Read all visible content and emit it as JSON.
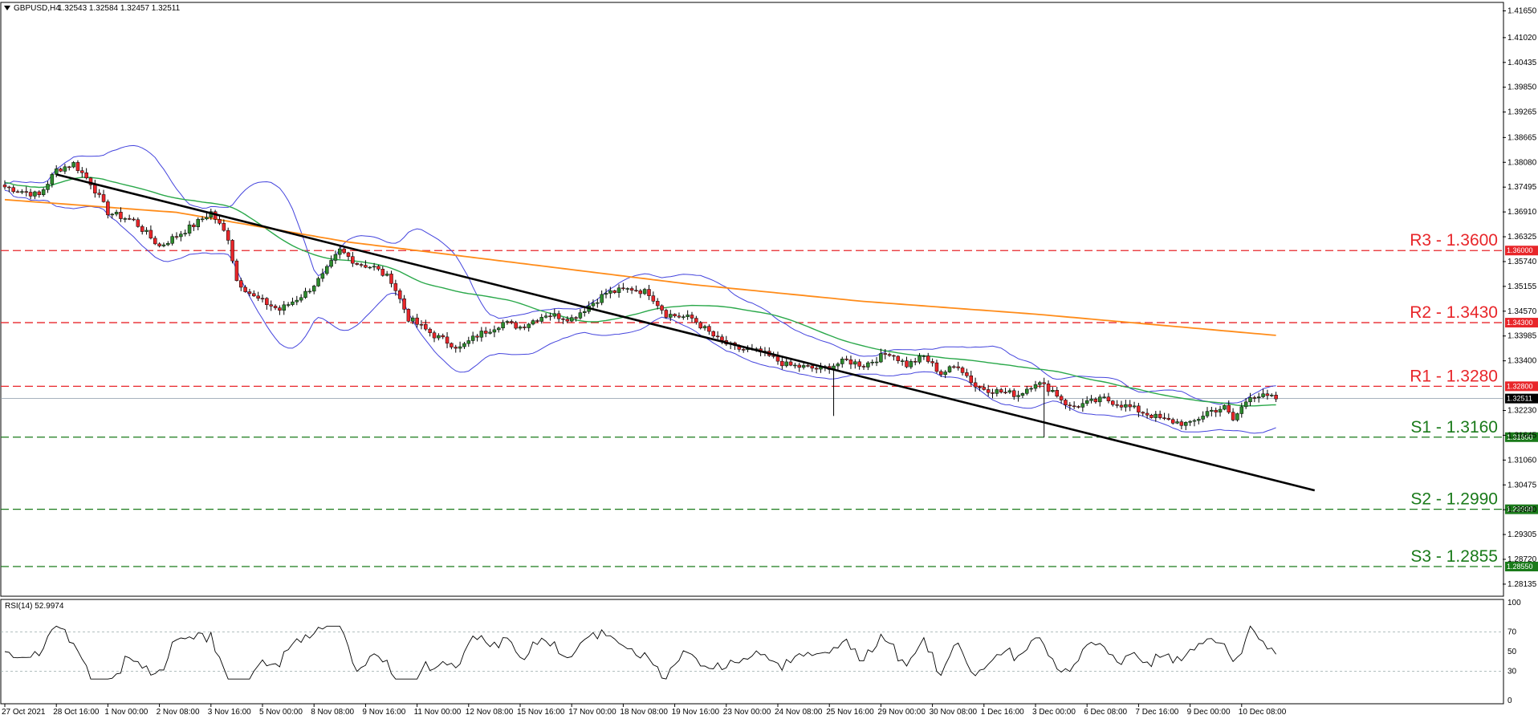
{
  "header": {
    "symbol": "GBPUSD,H4",
    "ohlc": "1.32543 1.32584 1.32457 1.32511"
  },
  "rsi_header": "RSI(14) 52.9974",
  "colors": {
    "bull": "#2e8b2e",
    "bear": "#e8262a",
    "bollinger": "#4444dd",
    "ma_short": "#2aa84a",
    "ma_long": "#ff8c1a",
    "trendline": "#000000",
    "resistance": "#e8262a",
    "support": "#1a7a1a"
  },
  "chart_data": [
    {
      "type": "candlestick",
      "title": "GBPUSD,H4",
      "ylim": [
        1.2785,
        1.4185
      ],
      "y_ticks": [
        "1.41650",
        "1.41020",
        "1.40435",
        "1.39850",
        "1.39265",
        "1.38665",
        "1.38080",
        "1.37495",
        "1.36910",
        "1.36325",
        "1.35740",
        "1.35155",
        "1.34570",
        "1.33985",
        "1.33400",
        "1.32800",
        "1.32511",
        "1.32230",
        "1.31645",
        "1.31060",
        "1.30475",
        "1.29890",
        "1.29305",
        "1.28720",
        "1.28550",
        "1.28135"
      ],
      "x_tick_labels": [
        "27 Oct 2021",
        "28 Oct 16:00",
        "1 Nov 00:00",
        "2 Nov 08:00",
        "3 Nov 16:00",
        "5 Nov 00:00",
        "8 Nov 08:00",
        "9 Nov 16:00",
        "11 Nov 00:00",
        "12 Nov 08:00",
        "15 Nov 16:00",
        "17 Nov 00:00",
        "18 Nov 08:00",
        "19 Nov 16:00",
        "23 Nov 00:00",
        "24 Nov 08:00",
        "25 Nov 16:00",
        "29 Nov 00:00",
        "30 Nov 08:00",
        "1 Dec 16:00",
        "3 Dec 00:00",
        "6 Dec 08:00",
        "7 Dec 16:00",
        "9 Dec 00:00",
        "10 Dec 08:00"
      ],
      "current_price": "1.32511",
      "levels": [
        {
          "name": "R3",
          "label": "R3 - 1.3600",
          "value": 1.36,
          "tag": "1.36000",
          "kind": "resistance"
        },
        {
          "name": "R2",
          "label": "R2 - 1.3430",
          "value": 1.343,
          "tag": "1.34300",
          "kind": "resistance"
        },
        {
          "name": "R1",
          "label": "R1 - 1.3280",
          "value": 1.328,
          "tag": "1.32800",
          "kind": "resistance"
        },
        {
          "name": "S1",
          "label": "S1 - 1.3160",
          "value": 1.316,
          "tag": "1.31600",
          "kind": "support"
        },
        {
          "name": "S2",
          "label": "S2 - 1.2990",
          "value": 1.299,
          "tag": "1.29900",
          "kind": "support"
        },
        {
          "name": "S3",
          "label": "S3 - 1.2855",
          "value": 1.2855,
          "tag": "1.28550",
          "kind": "support"
        }
      ],
      "trendline": [
        {
          "bar": 0,
          "price": 1.381
        },
        {
          "bar": 236,
          "price": 1.321
        }
      ],
      "close_anchors": [
        [
          0,
          1.375
        ],
        [
          8,
          1.373
        ],
        [
          12,
          1.379
        ],
        [
          16,
          1.3805
        ],
        [
          20,
          1.376
        ],
        [
          24,
          1.369
        ],
        [
          30,
          1.367
        ],
        [
          36,
          1.361
        ],
        [
          44,
          1.366
        ],
        [
          48,
          1.369
        ],
        [
          52,
          1.363
        ],
        [
          54,
          1.353
        ],
        [
          58,
          1.349
        ],
        [
          64,
          1.346
        ],
        [
          70,
          1.35
        ],
        [
          74,
          1.354
        ],
        [
          78,
          1.36
        ],
        [
          82,
          1.357
        ],
        [
          86,
          1.356
        ],
        [
          90,
          1.353
        ],
        [
          94,
          1.344
        ],
        [
          100,
          1.34
        ],
        [
          106,
          1.337
        ],
        [
          110,
          1.34
        ],
        [
          116,
          1.343
        ],
        [
          120,
          1.342
        ],
        [
          126,
          1.345
        ],
        [
          132,
          1.344
        ],
        [
          140,
          1.35
        ],
        [
          146,
          1.351
        ],
        [
          150,
          1.35
        ],
        [
          154,
          1.345
        ],
        [
          160,
          1.344
        ],
        [
          166,
          1.339
        ],
        [
          170,
          1.337
        ],
        [
          176,
          1.336
        ],
        [
          182,
          1.333
        ],
        [
          190,
          1.332
        ],
        [
          196,
          1.334
        ],
        [
          200,
          1.333
        ],
        [
          206,
          1.336
        ],
        [
          210,
          1.333
        ],
        [
          214,
          1.335
        ],
        [
          218,
          1.331
        ],
        [
          222,
          1.333
        ],
        [
          226,
          1.328
        ],
        [
          230,
          1.327
        ],
        [
          236,
          1.326
        ],
        [
          240,
          1.329
        ],
        [
          244,
          1.327
        ],
        [
          248,
          1.323
        ],
        [
          256,
          1.325
        ],
        [
          262,
          1.323
        ],
        [
          270,
          1.32
        ],
        [
          276,
          1.319
        ],
        [
          280,
          1.322
        ],
        [
          284,
          1.323
        ],
        [
          286,
          1.32
        ],
        [
          290,
          1.326
        ],
        [
          296,
          1.3251
        ]
      ],
      "ma_long_anchors": [
        [
          0,
          1.372
        ],
        [
          40,
          1.369
        ],
        [
          80,
          1.362
        ],
        [
          120,
          1.357
        ],
        [
          160,
          1.352
        ],
        [
          200,
          1.348
        ],
        [
          240,
          1.345
        ],
        [
          296,
          1.34
        ]
      ],
      "rsi": {
        "ylim": [
          0,
          100
        ],
        "ticks": [
          "100",
          "70",
          "50",
          "30",
          "0"
        ],
        "levels": [
          70,
          30
        ]
      }
    }
  ]
}
